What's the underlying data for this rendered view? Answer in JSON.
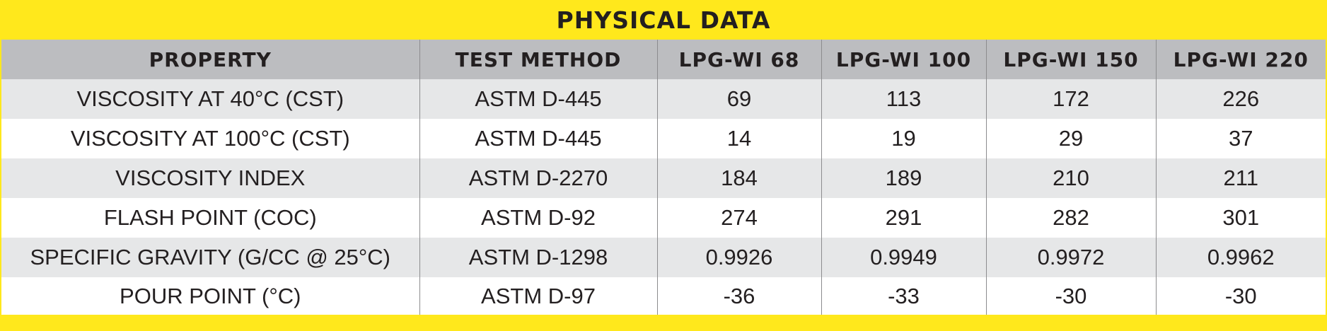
{
  "title": "PHYSICAL DATA",
  "headers": [
    "PROPERTY",
    "TEST METHOD",
    "LPG-WI 68",
    "LPG-WI 100",
    "LPG-WI 150",
    "LPG-WI 220"
  ],
  "rows": [
    [
      "VISCOSITY AT 40°C (CST)",
      "ASTM D-445",
      "69",
      "113",
      "172",
      "226"
    ],
    [
      "VISCOSITY AT 100°C (CST)",
      "ASTM D-445",
      "14",
      "19",
      "29",
      "37"
    ],
    [
      "VISCOSITY INDEX",
      "ASTM D-2270",
      "184",
      "189",
      "210",
      "211"
    ],
    [
      "FLASH POINT (COC)",
      "ASTM D-92",
      "274",
      "291",
      "282",
      "301"
    ],
    [
      "SPECIFIC GRAVITY (G/CC @ 25°C)",
      "ASTM D-1298",
      "0.9926",
      "0.9949",
      "0.9972",
      "0.9962"
    ],
    [
      "POUR POINT (°C)",
      "ASTM D-97",
      "-36",
      "-33",
      "-30",
      "-30"
    ]
  ],
  "colors": {
    "banner": "#ffe81c",
    "header_bg": "#bcbdc0",
    "stripe": "#e6e7e8",
    "text": "#231f20"
  }
}
